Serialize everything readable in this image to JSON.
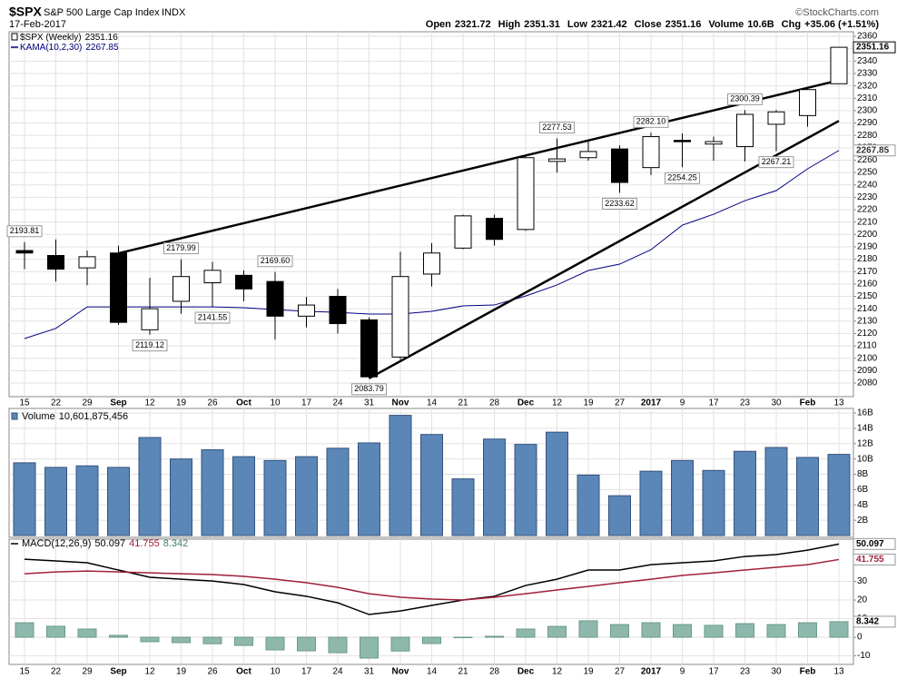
{
  "chart_data": {
    "type": "candlestick",
    "header": {
      "symbol": "$SPX",
      "name": "S&P 500 Large Cap Index",
      "exchange": "INDX",
      "source": "©StockCharts.com",
      "date": "17-Feb-2017",
      "quote": [
        {
          "label": "Open",
          "value": "2321.72"
        },
        {
          "label": "High",
          "value": "2351.31"
        },
        {
          "label": "Low",
          "value": "2321.42"
        },
        {
          "label": "Close",
          "value": "2351.16"
        },
        {
          "label": "Volume",
          "value": "10.6B"
        },
        {
          "label": "Chg",
          "value": "+35.06 (+1.51%)"
        }
      ]
    },
    "categories": [
      "15",
      "22",
      "29",
      "Sep",
      "12",
      "19",
      "26",
      "Oct",
      "10",
      "17",
      "24",
      "31",
      "Nov",
      "14",
      "21",
      "28",
      "Dec",
      "12",
      "19",
      "27",
      "2017",
      "9",
      "17",
      "23",
      "30",
      "Feb",
      "13"
    ],
    "grid": true,
    "price": {
      "legend": "$SPX (Weekly)",
      "last_label": "2351.16",
      "up_color": "#ffffff",
      "down_color": "#000000",
      "open": [
        2187,
        2183,
        2173,
        2185,
        2123,
        2146,
        2161,
        2167,
        2162,
        2134,
        2150,
        2131,
        2101,
        2168,
        2189,
        2213,
        2204,
        2259,
        2262,
        2269,
        2254,
        2276,
        2273,
        2271,
        2289,
        2296,
        2321.72
      ],
      "high": [
        2193.81,
        2196,
        2187,
        2191,
        2165,
        2179.99,
        2178,
        2171,
        2169.6,
        2149.6,
        2156,
        2133,
        2186,
        2193,
        2216,
        2216,
        2264,
        2277.53,
        2275.7,
        2272,
        2282.1,
        2281.6,
        2279,
        2300.39,
        2300.5,
        2319,
        2351.31
      ],
      "low": [
        2172,
        2162,
        2159,
        2127,
        2119.12,
        2136,
        2141.55,
        2146,
        2115,
        2125,
        2120,
        2083.79,
        2099,
        2158,
        2188,
        2191,
        2203,
        2250,
        2259.6,
        2233.62,
        2248,
        2254.25,
        2259.6,
        2259,
        2267.21,
        2287,
        2321.42
      ],
      "close": [
        2185,
        2172,
        2182,
        2129,
        2140,
        2166,
        2171,
        2156,
        2134,
        2143,
        2128,
        2085,
        2166,
        2185,
        2215,
        2196,
        2262,
        2261,
        2267,
        2242,
        2279,
        2275,
        2275,
        2297,
        2299,
        2317,
        2351.16
      ],
      "high_labels": [
        "2193.81",
        null,
        null,
        null,
        null,
        "2179.99",
        null,
        null,
        "2169.60",
        null,
        null,
        null,
        null,
        null,
        null,
        null,
        null,
        "2277.53",
        null,
        null,
        "2282.10",
        null,
        null,
        "2300.39",
        null,
        null,
        null
      ],
      "low_labels": [
        null,
        null,
        null,
        null,
        "2119.12",
        null,
        "2141.55",
        null,
        null,
        null,
        null,
        "2083.79",
        null,
        null,
        null,
        null,
        null,
        null,
        null,
        "2233.62",
        null,
        "2254.25",
        null,
        null,
        "2267.21",
        null,
        null
      ],
      "ylim": [
        2069,
        2363.7
      ],
      "yticks": [
        2080,
        2090,
        2100,
        2110,
        2120,
        2130,
        2140,
        2150,
        2160,
        2170,
        2180,
        2190,
        2200,
        2210,
        2220,
        2230,
        2240,
        2250,
        2260,
        2270,
        2280,
        2290,
        2300,
        2310,
        2320,
        2330,
        2340,
        2350,
        2360
      ]
    },
    "kama": {
      "name": "KAMA(10,2,30)",
      "color": "#000080",
      "last_label": "2267.85",
      "values": [
        2115.9,
        2124.1,
        2141.5,
        2141.5,
        2141.5,
        2141.5,
        2141.5,
        2140.8,
        2139.3,
        2137.9,
        2137.1,
        2135.7,
        2135.7,
        2137.9,
        2142.3,
        2143,
        2150.3,
        2159.2,
        2170.9,
        2176,
        2187.7,
        2207.5,
        2216.3,
        2227.3,
        2235.4,
        2253,
        2267.85
      ]
    },
    "trendlines": [
      {
        "x": [
          3,
          26
        ],
        "values": [
          2184.8,
          2324.5
        ],
        "color": "#000000"
      },
      {
        "x": [
          11,
          26
        ],
        "values": [
          2083.79,
          2291.7
        ],
        "color": "#000000"
      }
    ],
    "volume": {
      "name": "Volume",
      "total_label": "10,601,875,456",
      "color": "#5b87b8",
      "values": [
        9.5,
        8.9,
        9.1,
        8.9,
        12.8,
        10.0,
        11.2,
        10.3,
        9.8,
        10.3,
        11.4,
        12.1,
        15.7,
        13.2,
        7.4,
        12.6,
        11.9,
        13.5,
        7.9,
        5.2,
        8.4,
        9.8,
        8.5,
        11.0,
        11.5,
        10.2,
        10.6
      ],
      "ylim": [
        0,
        16.6
      ],
      "yticks": [
        {
          "value": 2,
          "label": "2B"
        },
        {
          "value": 4,
          "label": "4B"
        },
        {
          "value": 6,
          "label": "6B"
        },
        {
          "value": 8,
          "label": "8B"
        },
        {
          "value": 10,
          "label": "10B"
        },
        {
          "value": 12,
          "label": "12B"
        },
        {
          "value": 14,
          "label": "14B"
        },
        {
          "value": 16,
          "label": "16B"
        }
      ]
    },
    "macd": {
      "name": "MACD(12,26,9)",
      "ylim": [
        -14.6,
        52.7
      ],
      "yticks": [
        -10,
        0,
        10,
        20,
        30
      ],
      "series": [
        {
          "name": "MACD",
          "color": "#000000",
          "last_label": "50.097",
          "values": [
            41.9,
            41,
            40,
            36.1,
            32.2,
            31.2,
            30.2,
            28.3,
            24.4,
            22,
            18.5,
            12.2,
            14.1,
            17.1,
            20,
            22,
            27.8,
            31.2,
            36.1,
            36.1,
            39,
            40,
            41,
            43.4,
            44.4,
            46.8,
            50.097
          ]
        },
        {
          "name": "Signal",
          "color": "#a0203a",
          "last_label": "41.755",
          "values": [
            34.1,
            35.1,
            35.6,
            35.1,
            34.6,
            34.1,
            33.7,
            32.7,
            31.2,
            29.3,
            26.8,
            23.4,
            21.5,
            20.5,
            20,
            21.5,
            23.4,
            25.4,
            27.3,
            29.3,
            31.2,
            33.2,
            34.6,
            36.1,
            37.6,
            39,
            41.755
          ]
        },
        {
          "name": "Histogram",
          "color": "#8fb8ad",
          "last_label": "8.342",
          "values": [
            7.8,
            5.9,
            4.4,
            1.0,
            -2.4,
            -2.9,
            -3.5,
            -4.4,
            -6.8,
            -7.3,
            -8.3,
            -11.2,
            -7.4,
            -3.4,
            0,
            0.5,
            4.4,
            5.8,
            8.8,
            6.8,
            7.8,
            6.8,
            6.4,
            7.3,
            6.8,
            7.8,
            8.342
          ]
        }
      ]
    }
  }
}
